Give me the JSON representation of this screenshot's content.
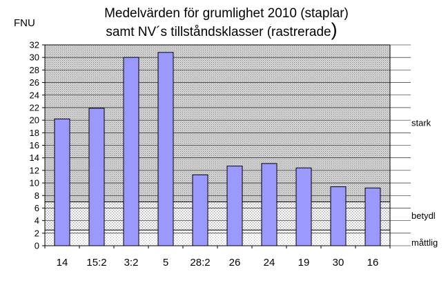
{
  "chart_data": {
    "type": "bar",
    "title": "Medelvärden för grumlighet 2010 (staplar)",
    "subtitle": "samt NV´s tillståndsklasser (rastrerade",
    "subtitle_paren": ")",
    "ylabel": "FNU",
    "ylim": [
      0,
      32
    ],
    "ytick_step": 2,
    "categories": [
      "14",
      "15:2",
      "3:2",
      "5",
      "28:2",
      "26",
      "24",
      "19",
      "30",
      "16"
    ],
    "values": [
      20.2,
      21.9,
      30.0,
      30.8,
      11.3,
      12.7,
      13.1,
      12.4,
      9.4,
      9.2
    ],
    "bar_color": "#9999ff",
    "class_bands": [
      {
        "label": "måttlig",
        "from": 0,
        "to": 2.5,
        "pattern": "dots-light"
      },
      {
        "label": "betydl",
        "from": 2.5,
        "to": 7,
        "pattern": "dots-medium"
      },
      {
        "label": "stark",
        "from": 7,
        "to": 32,
        "pattern": "dots-dense"
      }
    ],
    "grid": true,
    "legend": "none"
  }
}
